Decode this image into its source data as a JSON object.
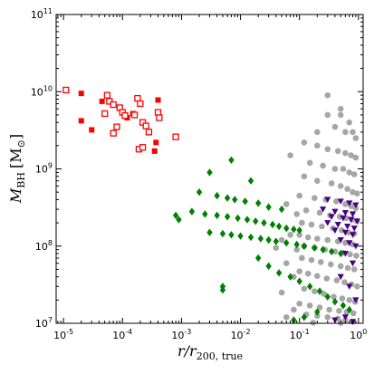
{
  "chart_data": {
    "type": "scatter",
    "title": "",
    "x_scale": "log",
    "y_scale": "log",
    "xlim": [
      7.5e-06,
      1.2
    ],
    "ylim": [
      10000000,
      100000000000
    ],
    "xlabel_parts": {
      "main": "r/r",
      "sub": "200, true"
    },
    "ylabel_parts": {
      "main": "M",
      "sub": "BH",
      "unit": "[M",
      "unit_sub": "⊙",
      "unit_close": "]"
    },
    "x_ticks": [
      {
        "value": 1e-05,
        "base": "10",
        "exp": "-5"
      },
      {
        "value": 0.0001,
        "base": "10",
        "exp": "-4"
      },
      {
        "value": 0.001,
        "base": "10",
        "exp": "-3"
      },
      {
        "value": 0.01,
        "base": "10",
        "exp": "-2"
      },
      {
        "value": 0.1,
        "base": "10",
        "exp": "-1"
      },
      {
        "value": 1,
        "base": "10",
        "exp": "0"
      }
    ],
    "y_ticks": [
      {
        "value": 10000000,
        "base": "10",
        "exp": "7"
      },
      {
        "value": 100000000,
        "base": "10",
        "exp": "8"
      },
      {
        "value": 1000000000,
        "base": "10",
        "exp": "9"
      },
      {
        "value": 10000000000,
        "base": "10",
        "exp": "10"
      },
      {
        "value": 100000000000,
        "base": "10",
        "exp": "11"
      }
    ],
    "grid": false,
    "series": [
      {
        "marker": "circle",
        "color": "#a6a6a6",
        "points": [
          [
            0.3,
            9000000000
          ],
          [
            0.5,
            6000000000
          ],
          [
            0.3,
            5000000000
          ],
          [
            0.5,
            5000000000
          ],
          [
            0.7,
            4000000000
          ],
          [
            0.2,
            3000000000
          ],
          [
            0.4,
            3500000000
          ],
          [
            0.6,
            3000000000
          ],
          [
            0.8,
            3000000000
          ],
          [
            0.9,
            2500000000
          ],
          [
            0.12,
            2200000000
          ],
          [
            0.2,
            2000000000
          ],
          [
            0.3,
            1800000000
          ],
          [
            0.45,
            1700000000
          ],
          [
            0.6,
            1600000000
          ],
          [
            0.75,
            1500000000
          ],
          [
            0.9,
            1400000000
          ],
          [
            0.15,
            1200000000
          ],
          [
            0.25,
            1100000000
          ],
          [
            0.4,
            1000000000
          ],
          [
            0.55,
            1000000000
          ],
          [
            0.7,
            900000000
          ],
          [
            0.85,
            850000000
          ],
          [
            0.12,
            800000000
          ],
          [
            0.2,
            700000000
          ],
          [
            0.35,
            650000000
          ],
          [
            0.5,
            600000000
          ],
          [
            0.65,
            550000000
          ],
          [
            0.8,
            500000000
          ],
          [
            0.95,
            480000000
          ],
          [
            0.1,
            450000000
          ],
          [
            0.18,
            420000000
          ],
          [
            0.28,
            400000000
          ],
          [
            0.42,
            380000000
          ],
          [
            0.6,
            350000000
          ],
          [
            0.75,
            330000000
          ],
          [
            0.9,
            310000000
          ],
          [
            0.13,
            290000000
          ],
          [
            0.22,
            270000000
          ],
          [
            0.33,
            250000000
          ],
          [
            0.48,
            240000000
          ],
          [
            0.62,
            230000000
          ],
          [
            0.78,
            220000000
          ],
          [
            0.95,
            210000000
          ],
          [
            0.11,
            200000000
          ],
          [
            0.16,
            190000000
          ],
          [
            0.24,
            180000000
          ],
          [
            0.37,
            170000000
          ],
          [
            0.52,
            160000000
          ],
          [
            0.68,
            150000000
          ],
          [
            0.85,
            145000000
          ],
          [
            0.1,
            140000000
          ],
          [
            0.14,
            130000000
          ],
          [
            0.2,
            125000000
          ],
          [
            0.3,
            120000000
          ],
          [
            0.45,
            115000000
          ],
          [
            0.6,
            110000000
          ],
          [
            0.8,
            105000000
          ],
          [
            0.12,
            100000000
          ],
          [
            0.18,
            95000000
          ],
          [
            0.27,
            90000000
          ],
          [
            0.4,
            85000000
          ],
          [
            0.55,
            82000000
          ],
          [
            0.72,
            78000000
          ],
          [
            0.92,
            75000000
          ],
          [
            0.11,
            70000000
          ],
          [
            0.16,
            66000000
          ],
          [
            0.23,
            62000000
          ],
          [
            0.34,
            58000000
          ],
          [
            0.5,
            55000000
          ],
          [
            0.66,
            52000000
          ],
          [
            0.85,
            50000000
          ],
          [
            0.1,
            47000000
          ],
          [
            0.14,
            44000000
          ],
          [
            0.2,
            41000000
          ],
          [
            0.29,
            38000000
          ],
          [
            0.43,
            36000000
          ],
          [
            0.58,
            34000000
          ],
          [
            0.76,
            32000000
          ],
          [
            0.95,
            30000000
          ],
          [
            0.12,
            28000000
          ],
          [
            0.18,
            26000000
          ],
          [
            0.26,
            24000000
          ],
          [
            0.38,
            22000000
          ],
          [
            0.53,
            21000000
          ],
          [
            0.7,
            20000000
          ],
          [
            0.88,
            19000000
          ],
          [
            0.1,
            18000000
          ],
          [
            0.15,
            17000000
          ],
          [
            0.22,
            16000000
          ],
          [
            0.32,
            15000000
          ],
          [
            0.47,
            14500000
          ],
          [
            0.63,
            14000000
          ],
          [
            0.82,
            13500000
          ],
          [
            0.13,
            13000000
          ],
          [
            0.2,
            12500000
          ],
          [
            0.3,
            12000000
          ],
          [
            0.45,
            11500000
          ],
          [
            0.6,
            11000000
          ],
          [
            0.8,
            10500000
          ],
          [
            0.17,
            10200000
          ],
          [
            0.5,
            10100000
          ],
          [
            0.07,
            140000000
          ],
          [
            0.05,
            120000000
          ],
          [
            0.04,
            95000000
          ],
          [
            0.06,
            60000000
          ],
          [
            0.08,
            40000000
          ],
          [
            0.05,
            25000000
          ],
          [
            0.07,
            1500000000
          ],
          [
            0.06,
            350000000
          ],
          [
            0.09,
            260000000
          ],
          [
            0.09,
            90000000
          ],
          [
            0.08,
            15000000
          ],
          [
            0.06,
            12000000
          ]
        ]
      },
      {
        "marker": "diamond",
        "color": "#008000",
        "points": [
          [
            0.007,
            1300000000
          ],
          [
            0.003,
            900000000
          ],
          [
            0.015,
            700000000
          ],
          [
            0.002,
            500000000
          ],
          [
            0.004,
            450000000
          ],
          [
            0.006,
            420000000
          ],
          [
            0.008,
            400000000
          ],
          [
            0.012,
            380000000
          ],
          [
            0.02,
            360000000
          ],
          [
            0.03,
            320000000
          ],
          [
            0.05,
            300000000
          ],
          [
            0.0015,
            280000000
          ],
          [
            0.0025,
            260000000
          ],
          [
            0.004,
            250000000
          ],
          [
            0.006,
            240000000
          ],
          [
            0.009,
            230000000
          ],
          [
            0.013,
            220000000
          ],
          [
            0.018,
            210000000
          ],
          [
            0.025,
            200000000
          ],
          [
            0.035,
            190000000
          ],
          [
            0.045,
            180000000
          ],
          [
            0.06,
            170000000
          ],
          [
            0.08,
            165000000
          ],
          [
            0.1,
            160000000
          ],
          [
            0.003,
            150000000
          ],
          [
            0.005,
            145000000
          ],
          [
            0.007,
            140000000
          ],
          [
            0.01,
            135000000
          ],
          [
            0.015,
            130000000
          ],
          [
            0.022,
            125000000
          ],
          [
            0.03,
            120000000
          ],
          [
            0.04,
            115000000
          ],
          [
            0.06,
            110000000
          ],
          [
            0.09,
            105000000
          ],
          [
            0.12,
            100000000
          ],
          [
            0.18,
            95000000
          ],
          [
            0.25,
            90000000
          ],
          [
            0.35,
            85000000
          ],
          [
            0.5,
            80000000
          ],
          [
            0.0008,
            250000000
          ],
          [
            0.0009,
            220000000
          ],
          [
            0.02,
            70000000
          ],
          [
            0.03,
            55000000
          ],
          [
            0.045,
            45000000
          ],
          [
            0.07,
            40000000
          ],
          [
            0.1,
            35000000
          ],
          [
            0.15,
            30000000
          ],
          [
            0.22,
            26000000
          ],
          [
            0.3,
            22000000
          ],
          [
            0.4,
            19000000
          ],
          [
            0.55,
            17000000
          ],
          [
            0.7,
            15000000
          ],
          [
            0.2,
            14000000
          ],
          [
            0.12,
            12000000
          ],
          [
            0.005,
            30000000
          ],
          [
            0.005,
            27000000
          ],
          [
            0.08,
            11000000
          ]
        ]
      },
      {
        "marker": "triangle-down",
        "color": "#4b0082",
        "points": [
          [
            0.3,
            400000000
          ],
          [
            0.5,
            380000000
          ],
          [
            0.7,
            360000000
          ],
          [
            0.9,
            340000000
          ],
          [
            0.25,
            300000000
          ],
          [
            0.4,
            280000000
          ],
          [
            0.6,
            270000000
          ],
          [
            0.8,
            260000000
          ],
          [
            0.35,
            240000000
          ],
          [
            0.55,
            230000000
          ],
          [
            0.75,
            220000000
          ],
          [
            0.95,
            210000000
          ],
          [
            0.3,
            200000000
          ],
          [
            0.45,
            190000000
          ],
          [
            0.65,
            180000000
          ],
          [
            0.85,
            170000000
          ],
          [
            0.4,
            160000000
          ],
          [
            0.6,
            150000000
          ],
          [
            0.8,
            140000000
          ],
          [
            0.5,
            120000000
          ],
          [
            0.7,
            110000000
          ],
          [
            0.9,
            100000000
          ],
          [
            0.6,
            80000000
          ],
          [
            0.8,
            60000000
          ],
          [
            0.5,
            40000000
          ],
          [
            0.7,
            30000000
          ],
          [
            0.9,
            20000000
          ],
          [
            0.6,
            12000000
          ],
          [
            0.8,
            10500000
          ],
          [
            0.4,
            11000000
          ]
        ]
      },
      {
        "marker": "square",
        "color": "#ff0000",
        "points": [
          [
            2e-05,
            9500000000
          ],
          [
            4.5e-05,
            7500000000
          ],
          [
            2e-05,
            4200000000
          ],
          [
            3e-05,
            3200000000
          ],
          [
            0.00015,
            5200000000
          ],
          [
            0.00012,
            4600000000
          ],
          [
            0.0004,
            7800000000
          ],
          [
            0.00037,
            2200000000
          ],
          [
            0.00035,
            1700000000
          ]
        ]
      },
      {
        "marker": "square-open",
        "color": "#ff0000",
        "points": [
          [
            1.1e-05,
            10500000000
          ],
          [
            5.5e-05,
            9000000000
          ],
          [
            6e-05,
            7500000000
          ],
          [
            7e-05,
            6800000000
          ],
          [
            5e-05,
            5200000000
          ],
          [
            9e-05,
            6200000000
          ],
          [
            0.0001,
            5400000000
          ],
          [
            0.00011,
            4900000000
          ],
          [
            0.00018,
            8200000000
          ],
          [
            0.0002,
            7000000000
          ],
          [
            0.00016,
            5000000000
          ],
          [
            0.00022,
            4000000000
          ],
          [
            0.00025,
            3600000000
          ],
          [
            0.0004,
            5400000000
          ],
          [
            0.00042,
            4600000000
          ],
          [
            0.00028,
            3000000000
          ],
          [
            8e-05,
            3500000000
          ],
          [
            7e-05,
            2900000000
          ],
          [
            0.00019,
            1800000000
          ],
          [
            0.00022,
            1900000000
          ],
          [
            0.0008,
            2600000000
          ]
        ]
      }
    ]
  }
}
